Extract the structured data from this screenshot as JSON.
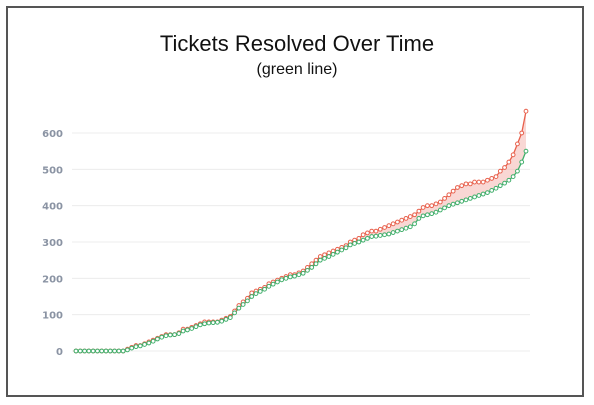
{
  "chart_data": {
    "type": "line",
    "title": "Tickets Resolved Over Time",
    "subtitle": "(green line)",
    "xlabel": "",
    "ylabel": "",
    "ylim": [
      0,
      600
    ],
    "yticks": [
      0,
      100,
      200,
      300,
      400,
      500,
      600
    ],
    "grid": true,
    "series": [
      {
        "name": "",
        "color": "#e8604c",
        "values": [
          0,
          0,
          0,
          0,
          0,
          0,
          0,
          0,
          0,
          0,
          0,
          0,
          5,
          10,
          15,
          15,
          20,
          25,
          30,
          35,
          40,
          45,
          45,
          45,
          50,
          60,
          60,
          65,
          70,
          75,
          80,
          80,
          80,
          80,
          85,
          90,
          95,
          110,
          125,
          135,
          145,
          160,
          165,
          170,
          175,
          185,
          190,
          195,
          200,
          205,
          210,
          210,
          215,
          220,
          230,
          240,
          250,
          260,
          265,
          270,
          275,
          280,
          285,
          290,
          300,
          305,
          310,
          320,
          325,
          330,
          330,
          335,
          340,
          345,
          350,
          355,
          360,
          365,
          370,
          375,
          385,
          395,
          400,
          400,
          405,
          410,
          420,
          430,
          440,
          450,
          455,
          460,
          460,
          465,
          465,
          465,
          470,
          475,
          480,
          495,
          505,
          520,
          540,
          570,
          600,
          660
        ]
      },
      {
        "name": "",
        "color": "#3fae6a",
        "values": [
          0,
          0,
          0,
          0,
          0,
          0,
          0,
          0,
          0,
          0,
          0,
          0,
          3,
          8,
          12,
          14,
          18,
          22,
          27,
          33,
          38,
          42,
          44,
          45,
          48,
          55,
          58,
          62,
          67,
          72,
          75,
          77,
          78,
          79,
          82,
          87,
          92,
          105,
          118,
          128,
          138,
          150,
          158,
          164,
          170,
          178,
          184,
          190,
          196,
          200,
          204,
          206,
          210,
          214,
          222,
          230,
          240,
          250,
          255,
          260,
          266,
          272,
          278,
          284,
          292,
          296,
          300,
          305,
          310,
          315,
          316,
          318,
          320,
          322,
          326,
          330,
          334,
          338,
          342,
          350,
          365,
          372,
          375,
          378,
          382,
          388,
          394,
          400,
          404,
          408,
          412,
          416,
          420,
          424,
          428,
          432,
          436,
          442,
          448,
          455,
          462,
          470,
          480,
          495,
          520,
          550
        ]
      }
    ]
  }
}
